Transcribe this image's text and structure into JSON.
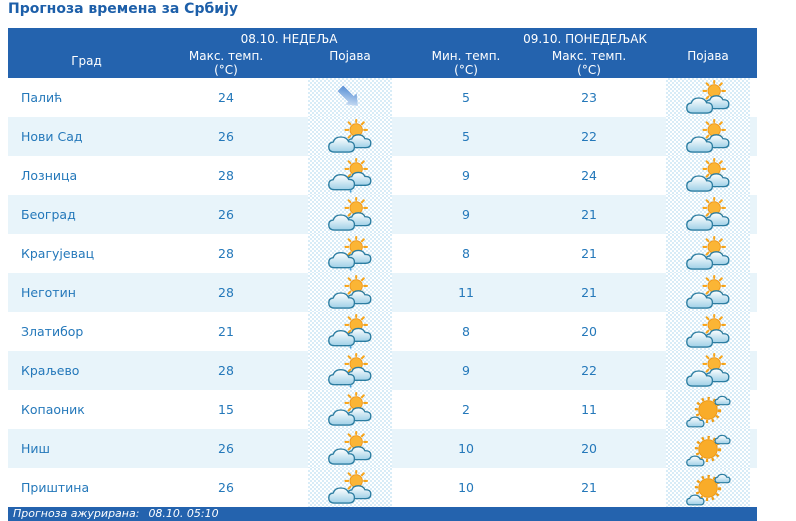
{
  "title": "Прогноза времена за Србију",
  "table": {
    "header": {
      "day1": "08.10. НЕДЕЉА",
      "day2": "09.10. ПОНЕДЕЉАК",
      "columns": {
        "city": "Град",
        "max_temp": "Макс. темп.",
        "min_temp": "Мин. темп.",
        "unit": "(°C)",
        "phenomenon": "Појава"
      }
    },
    "rows": [
      {
        "city": "Палић",
        "day1_max": "24",
        "day1_icon": "arrow-down-right",
        "day2_min": "5",
        "day2_max": "23",
        "day2_icon": "sun-behind-clouds"
      },
      {
        "city": "Нови Сад",
        "day1_max": "26",
        "day1_icon": "sun-behind-clouds",
        "day2_min": "5",
        "day2_max": "22",
        "day2_icon": "sun-behind-clouds"
      },
      {
        "city": "Лозница",
        "day1_max": "28",
        "day1_icon": "sun-clouds-light-rain",
        "day2_min": "9",
        "day2_max": "24",
        "day2_icon": "sun-behind-clouds"
      },
      {
        "city": "Београд",
        "day1_max": "26",
        "day1_icon": "sun-behind-clouds",
        "day2_min": "9",
        "day2_max": "21",
        "day2_icon": "sun-behind-clouds"
      },
      {
        "city": "Крагујевац",
        "day1_max": "28",
        "day1_icon": "sun-clouds-light-rain",
        "day2_min": "8",
        "day2_max": "21",
        "day2_icon": "sun-behind-clouds"
      },
      {
        "city": "Неготин",
        "day1_max": "28",
        "day1_icon": "sun-behind-clouds",
        "day2_min": "11",
        "day2_max": "21",
        "day2_icon": "sun-behind-clouds"
      },
      {
        "city": "Златибор",
        "day1_max": "21",
        "day1_icon": "sun-clouds-light-rain",
        "day2_min": "8",
        "day2_max": "20",
        "day2_icon": "sun-behind-clouds"
      },
      {
        "city": "Краљево",
        "day1_max": "28",
        "day1_icon": "sun-clouds-light-rain",
        "day2_min": "9",
        "day2_max": "22",
        "day2_icon": "sun-behind-clouds"
      },
      {
        "city": "Копаоник",
        "day1_max": "15",
        "day1_icon": "sun-behind-clouds",
        "day2_min": "2",
        "day2_max": "11",
        "day2_icon": "mostly-sunny"
      },
      {
        "city": "Ниш",
        "day1_max": "26",
        "day1_icon": "sun-behind-clouds",
        "day2_min": "10",
        "day2_max": "20",
        "day2_icon": "mostly-sunny"
      },
      {
        "city": "Приштина",
        "day1_max": "26",
        "day1_icon": "sun-behind-clouds",
        "day2_min": "10",
        "day2_max": "21",
        "day2_icon": "mostly-sunny"
      }
    ]
  },
  "footer": {
    "label": "Прогноза ажурирана:",
    "value": "08.10. 05:10"
  },
  "colors": {
    "header_bg": "#2463ae",
    "title_text": "#1d5fa9",
    "cell_text": "#2478ba",
    "row_alt_bg": "#e8f4fa",
    "icon_checker": "#d8ecf7"
  }
}
